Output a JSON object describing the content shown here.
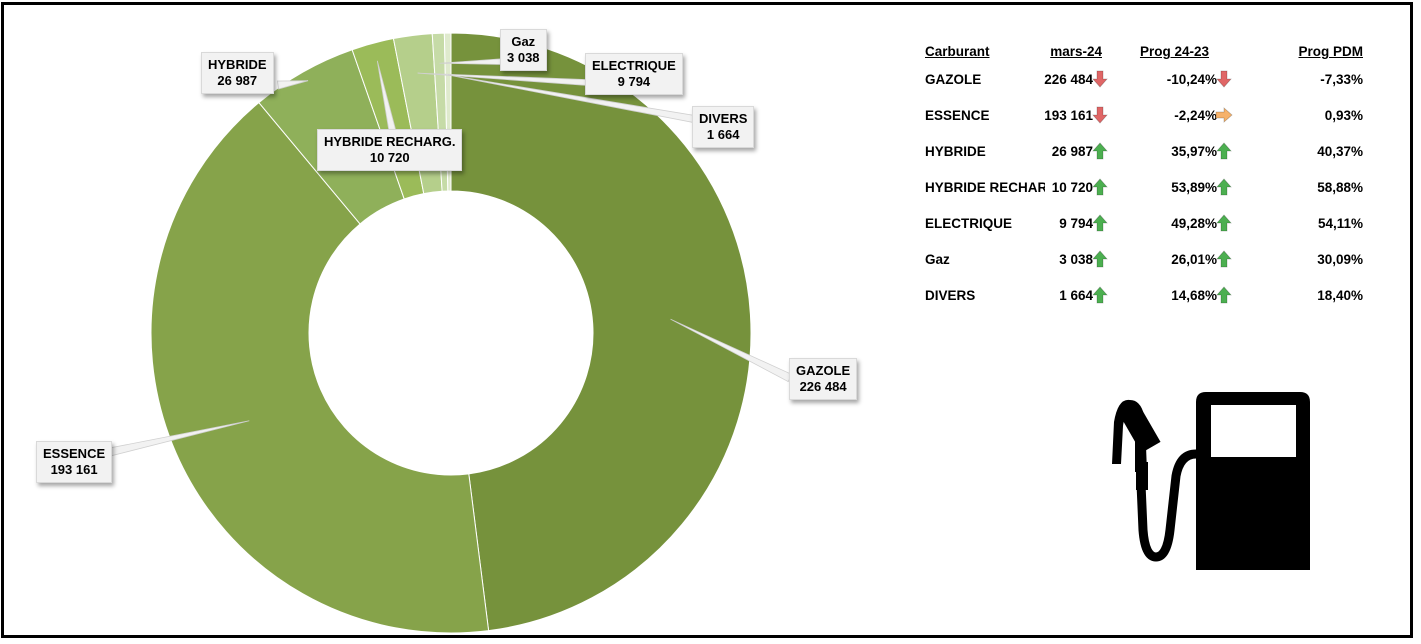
{
  "chart_data": {
    "type": "pie",
    "variant": "donut",
    "categories": [
      "GAZOLE",
      "ESSENCE",
      "HYBRIDE",
      "HYBRIDE RECHARG.",
      "ELECTRIQUE",
      "Gaz",
      "DIVERS"
    ],
    "values": [
      226484,
      193161,
      26987,
      10720,
      9794,
      3038,
      1664
    ],
    "value_labels": [
      "226 484",
      "193 161",
      "26 987",
      "10 720",
      "9 794",
      "3 038",
      "1 664"
    ],
    "colors": [
      "#76923c",
      "#86a34a",
      "#8fb05a",
      "#9bbb59",
      "#b5cf8b",
      "#c6dba7",
      "#dfeacd"
    ],
    "legend": "none"
  },
  "table": {
    "headers": [
      "Carburant",
      "mars-24",
      "Prog 24-23",
      "Prog PDM"
    ],
    "rows": [
      {
        "name": "GAZOLE",
        "value": "226 484",
        "arrow1": "down",
        "prog": "-10,24%",
        "arrow2": "down",
        "pdm": "-7,33%"
      },
      {
        "name": "ESSENCE",
        "value": "193 161",
        "arrow1": "down",
        "prog": "-2,24%",
        "arrow2": "right",
        "pdm": "0,93%"
      },
      {
        "name": "HYBRIDE",
        "value": "26 987",
        "arrow1": "up",
        "prog": "35,97%",
        "arrow2": "up",
        "pdm": "40,37%"
      },
      {
        "name": "HYBRIDE RECHARGEABLE",
        "value": "10 720",
        "arrow1": "up",
        "prog": "53,89%",
        "arrow2": "up",
        "pdm": "58,88%"
      },
      {
        "name": "ELECTRIQUE",
        "value": "9 794",
        "arrow1": "up",
        "prog": "49,28%",
        "arrow2": "up",
        "pdm": "54,11%"
      },
      {
        "name": "Gaz",
        "value": "3 038",
        "arrow1": "up",
        "prog": "26,01%",
        "arrow2": "up",
        "pdm": "30,09%"
      },
      {
        "name": "DIVERS",
        "value": "1 664",
        "arrow1": "up",
        "prog": "14,68%",
        "arrow2": "up",
        "pdm": "18,40%"
      }
    ]
  },
  "icons": {
    "pump": "fuel-pump-icon",
    "down": "arrow-down-icon",
    "up": "arrow-up-icon",
    "right": "arrow-right-icon"
  },
  "arrow_colors": {
    "down": "#e06666",
    "up": "#4caf50",
    "right": "#f6b26b"
  }
}
